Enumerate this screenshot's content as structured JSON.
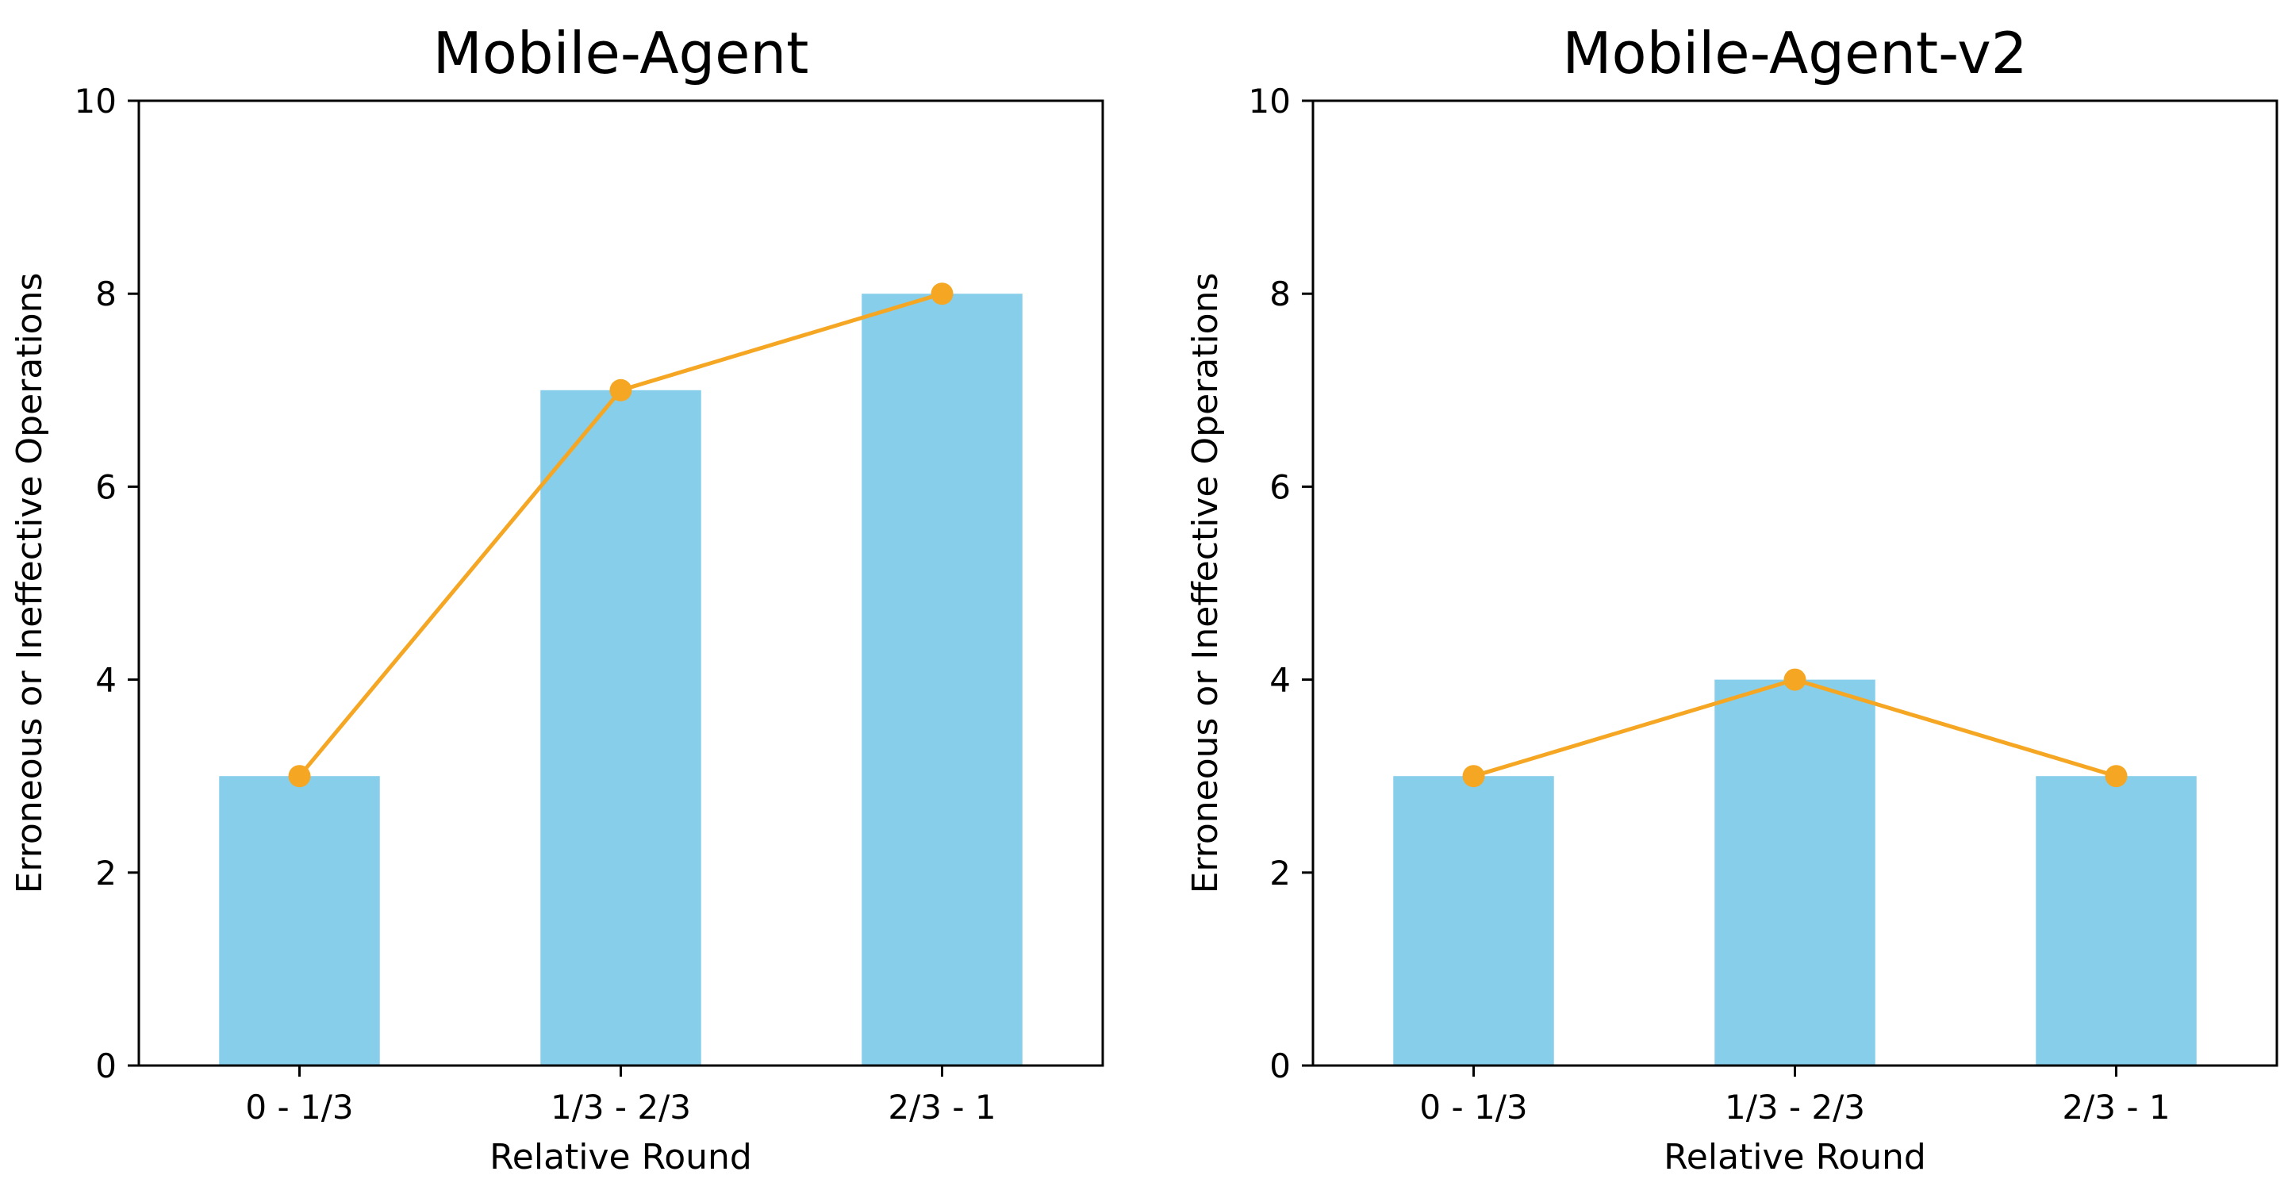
{
  "chart_data": [
    {
      "type": "bar",
      "title": "Mobile-Agent",
      "xlabel": "Relative Round",
      "ylabel": "Erroneous or Ineffective Operations",
      "categories": [
        "0 - 1/3",
        "1/3 - 2/3",
        "2/3 - 1"
      ],
      "values": [
        3,
        7,
        8
      ],
      "overlay_line": true,
      "ylim": [
        0,
        10
      ],
      "yticks": [
        0,
        2,
        4,
        6,
        8,
        10
      ],
      "grid": false,
      "colors": {
        "bar": "#87ceeb",
        "line": "#f5a623"
      }
    },
    {
      "type": "bar",
      "title": "Mobile-Agent-v2",
      "xlabel": "Relative Round",
      "ylabel": "Erroneous or Ineffective Operations",
      "categories": [
        "0 - 1/3",
        "1/3 - 2/3",
        "2/3 - 1"
      ],
      "values": [
        3,
        4,
        3
      ],
      "overlay_line": true,
      "ylim": [
        0,
        10
      ],
      "yticks": [
        0,
        2,
        4,
        6,
        8,
        10
      ],
      "grid": false,
      "colors": {
        "bar": "#87ceeb",
        "line": "#f5a623"
      }
    }
  ]
}
